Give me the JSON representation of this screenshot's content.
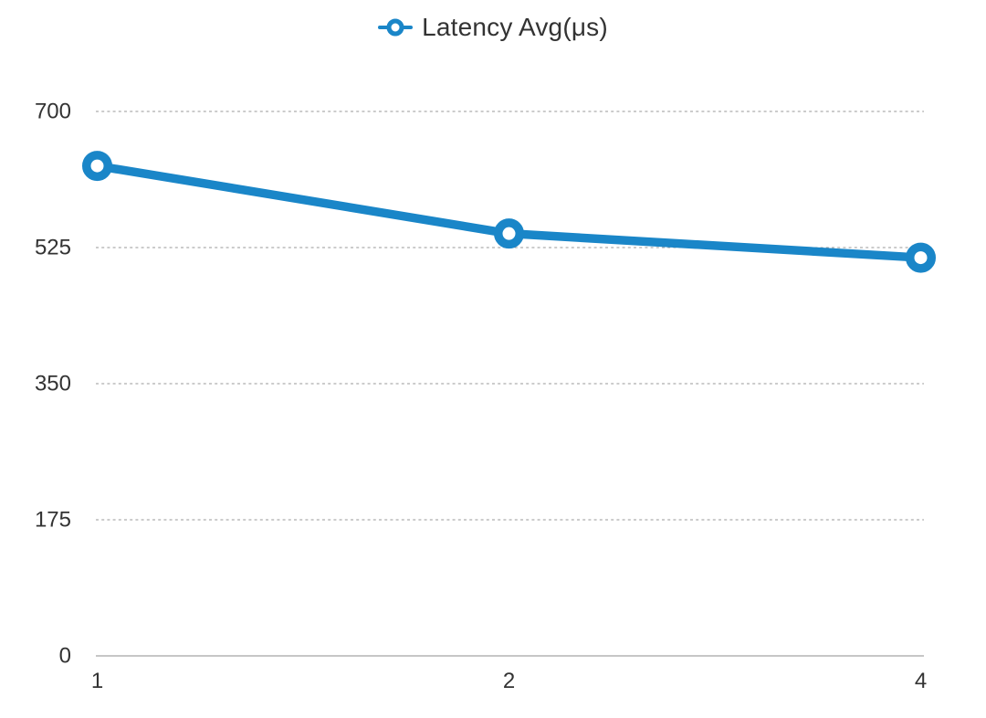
{
  "legend": {
    "label": "Latency Avg(μs)"
  },
  "colors": {
    "series": "#1a86c8",
    "grid": "#999999",
    "axis": "#b3b3b3",
    "text": "#333333",
    "background": "#ffffff"
  },
  "chart_data": {
    "type": "line",
    "categories": [
      "1",
      "2",
      "4"
    ],
    "series": [
      {
        "name": "Latency Avg(μs)",
        "values": [
          630,
          543,
          512
        ]
      }
    ],
    "title": "",
    "xlabel": "",
    "ylabel": "",
    "ylim": [
      0,
      700
    ],
    "yticks": [
      0,
      175,
      350,
      525,
      700
    ],
    "grid": "horizontal-dotted",
    "legend_position": "top-center",
    "marker": "donut"
  }
}
